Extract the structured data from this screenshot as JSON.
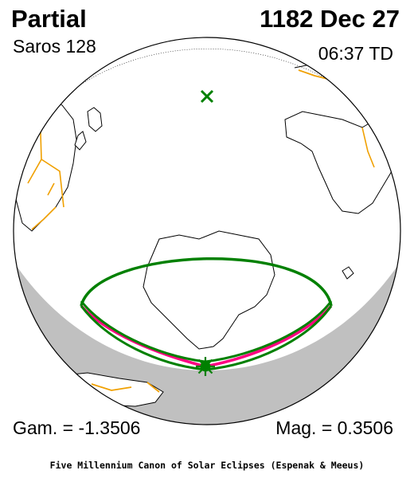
{
  "header": {
    "eclipse_type": "Partial",
    "date": "1182 Dec 27",
    "saros": "Saros 128",
    "time": "06:37 TD"
  },
  "footer": {
    "gamma": "Gam. = -1.3506",
    "magnitude": "Mag. = 0.3506",
    "credit": "Five Millennium Canon of Solar Eclipses (Espenak & Meeus)"
  },
  "colors": {
    "ocean": "#ffffff",
    "night_shade": "#c0c0c0",
    "coastline": "#000000",
    "borders": "#f0a000",
    "eclipse_limit": "#008000",
    "max_eclipse_curve": "#ff0080",
    "marker": "#008000"
  },
  "icons": {
    "sub_solar_point": "x-marker-icon",
    "greatest_eclipse": "sun-star-icon"
  }
}
